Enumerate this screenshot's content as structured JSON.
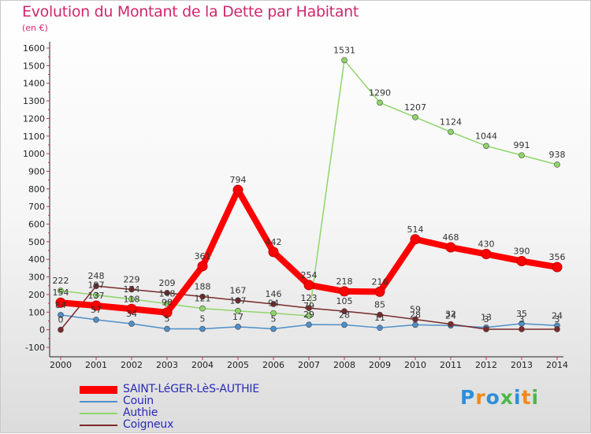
{
  "title": "Evolution du Montant de la Dette par Habitant",
  "subtitle": "(en €)",
  "logo": {
    "text": "Proxiti",
    "colors": [
      "#2d8fd8",
      "#f08a1a",
      "#2d8fd8",
      "#4bb84b",
      "#2d8fd8",
      "#f08a1a",
      "#4bb84b"
    ]
  },
  "chart_data": {
    "type": "line",
    "x": [
      2000,
      2001,
      2002,
      2003,
      2004,
      2005,
      2006,
      2007,
      2008,
      2009,
      2010,
      2011,
      2012,
      2013,
      2014
    ],
    "ylim": [
      -100,
      1600
    ],
    "yticks": [
      -100,
      0,
      100,
      200,
      300,
      400,
      500,
      600,
      700,
      800,
      900,
      1000,
      1100,
      1200,
      1300,
      1400,
      1500,
      1600
    ],
    "grid": false,
    "legend_position": "bottom-left",
    "series": [
      {
        "name": "SAINT-LéGER-LèS-AUTHIE",
        "color": "#ff0000",
        "width": 8,
        "values": [
          154,
          137,
          118,
          98,
          361,
          794,
          442,
          254,
          218,
          216,
          514,
          468,
          430,
          390,
          356
        ],
        "labels": [
          "154",
          "137",
          "118",
          "98",
          "361",
          "794",
          "442",
          "254",
          "218",
          "216",
          "514",
          "468",
          "430",
          "390",
          "356"
        ]
      },
      {
        "name": "Couin",
        "color": "#4d8fca",
        "width": 1.5,
        "values": [
          84,
          57,
          34,
          5,
          5,
          17,
          5,
          29,
          28,
          11,
          28,
          24,
          13,
          35,
          24
        ],
        "labels": [
          "84",
          "57",
          "34",
          "5",
          "5",
          "17",
          "5",
          "29",
          "28",
          "11",
          "28",
          "24",
          "13",
          "35",
          "24"
        ]
      },
      {
        "name": "Authie",
        "color": "#8fd668",
        "width": 1.5,
        "values": [
          222,
          197,
          174,
          148,
          121,
          107,
          94,
          79,
          1531,
          1290,
          1207,
          1124,
          1044,
          991,
          938
        ],
        "labels": [
          "222",
          "197",
          "174",
          "148",
          "121",
          "107",
          "94",
          "79",
          "1531",
          "1290",
          "1207",
          "1124",
          "1044",
          "991",
          "938"
        ]
      },
      {
        "name": "Coigneux",
        "color": "#7a2a2a",
        "width": 1.5,
        "values": [
          0,
          248,
          229,
          209,
          188,
          167,
          146,
          123,
          105,
          85,
          59,
          32,
          3,
          3,
          3
        ],
        "labels": [
          "0",
          "248",
          "229",
          "209",
          "188",
          "167",
          "146",
          "123",
          "105",
          "85",
          "59",
          "32",
          "3",
          "3",
          "3"
        ]
      }
    ]
  }
}
